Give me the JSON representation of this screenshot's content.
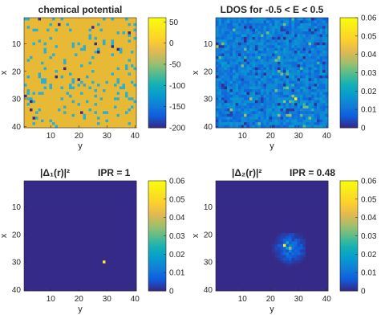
{
  "chart_data": [
    {
      "type": "heatmap",
      "title": "chemical potential",
      "title_extra": "",
      "xlabel": "y",
      "ylabel": "x",
      "grid_size": 40,
      "xticks": [
        "10",
        "20",
        "30",
        "40"
      ],
      "yticks": [
        "10",
        "20",
        "30",
        "40"
      ],
      "colorbar_ticks": [
        "50",
        "0",
        "-50",
        "-100",
        "-150",
        "-200"
      ],
      "clim": [
        -200,
        60
      ],
      "colormap": "parula",
      "background_value": 40,
      "dominant_color": "#e8b934",
      "minor_color": "#2eaed2",
      "dark_color": "#3b2a8e",
      "notes": "Mostly constant value near 40 with scattered cells near -50 and a few cells near -200"
    },
    {
      "type": "heatmap",
      "title": "LDOS for -0.5 < E < 0.5",
      "title_extra": "",
      "xlabel": "y",
      "ylabel": "x",
      "grid_size": 40,
      "xticks": [
        "10",
        "20",
        "30",
        "40"
      ],
      "yticks": [
        "10",
        "20",
        "30",
        "40"
      ],
      "colorbar_ticks": [
        "0.06",
        "0.05",
        "0.04",
        "0.03",
        "0.02",
        "0.01",
        "0"
      ],
      "clim": [
        0,
        0.06
      ],
      "colormap": "parula",
      "background_value": 0.012,
      "peak": {
        "row": 30,
        "col": 29,
        "value": 0.058
      }
    },
    {
      "type": "heatmap",
      "title": "|Δ₁(r)|²",
      "title_extra": "IPR = 1",
      "xlabel": "y",
      "ylabel": "x",
      "grid_size": 40,
      "xticks": [
        "10",
        "20",
        "30",
        "40"
      ],
      "yticks": [
        "10",
        "20",
        "30",
        "40"
      ],
      "colorbar_ticks": [
        "0.06",
        "0.05",
        "0.04",
        "0.03",
        "0.02",
        "0.01",
        "0"
      ],
      "clim": [
        0,
        0.06
      ],
      "colormap": "parula",
      "background_value": 0,
      "peak": {
        "row": 30,
        "col": 29,
        "value": 0.058
      }
    },
    {
      "type": "heatmap",
      "title": "|Δ₂(r)|²",
      "title_extra": "IPR = 0.48",
      "xlabel": "y",
      "ylabel": "x",
      "grid_size": 40,
      "xticks": [
        "10",
        "20",
        "30",
        "40"
      ],
      "yticks": [
        "10",
        "20",
        "30",
        "40"
      ],
      "colorbar_ticks": [
        "0.06",
        "0.05",
        "0.04",
        "0.03",
        "0.02",
        "0.01",
        "0"
      ],
      "clim": [
        0,
        0.06
      ],
      "colormap": "parula",
      "background_value": 0,
      "hotspots": [
        {
          "row": 24,
          "col": 25,
          "value": 0.058
        },
        {
          "row": 25,
          "col": 27,
          "value": 0.035
        },
        {
          "row": 23,
          "col": 26,
          "value": 0.02
        },
        {
          "row": 25,
          "col": 26,
          "value": 0.018
        },
        {
          "row": 26,
          "col": 27,
          "value": 0.015
        }
      ]
    }
  ]
}
